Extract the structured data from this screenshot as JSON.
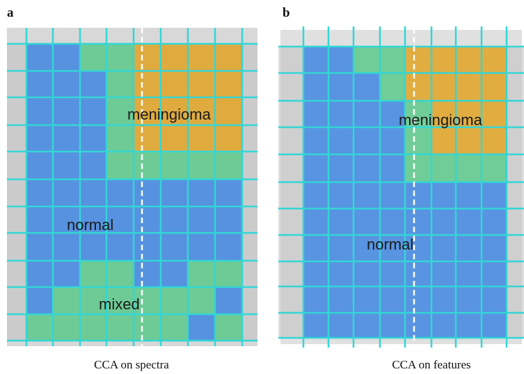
{
  "panels": [
    {
      "letter": "a",
      "labels": [
        "meningioma",
        "normal",
        "mixed"
      ],
      "caption": "CCA on spectra"
    },
    {
      "letter": "b",
      "labels": [
        "meningioma",
        "normal"
      ],
      "caption": "CCA on features"
    }
  ]
}
